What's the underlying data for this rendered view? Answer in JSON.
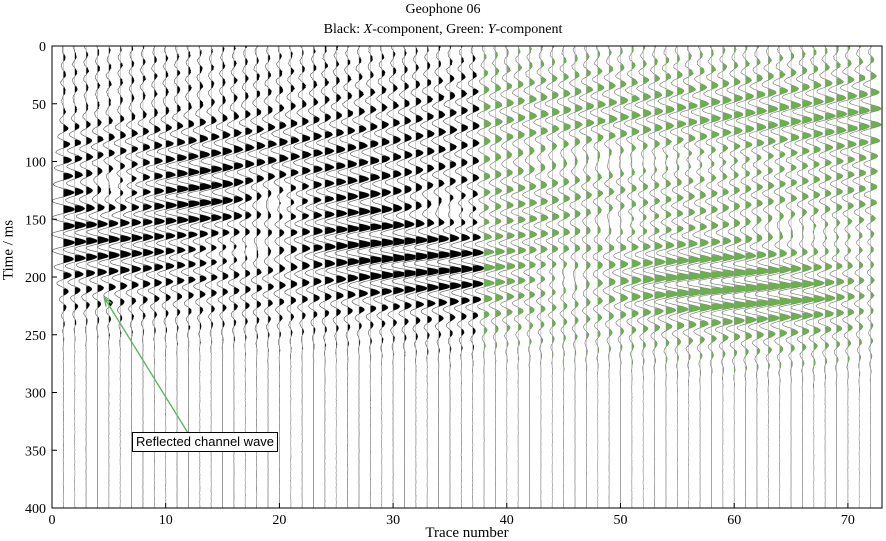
{
  "chart_data": {
    "type": "seismic-wiggle",
    "title": "Geophone 06",
    "subtitle": {
      "part1": "Black: ",
      "x_italic": "X",
      "part2": "-component, Green: ",
      "y_italic": "Y",
      "part3": "-component"
    },
    "xlabel": "Trace number",
    "ylabel": "Time / ms",
    "xlim": [
      0,
      73
    ],
    "ylim": [
      0,
      400
    ],
    "y_inverted": true,
    "x_ticks": [
      0,
      10,
      20,
      30,
      40,
      50,
      60,
      70
    ],
    "y_ticks": [
      0,
      50,
      100,
      150,
      200,
      250,
      300,
      350,
      400
    ],
    "trace_count": 72,
    "series": [
      {
        "name": "X-component",
        "color": "#000000",
        "traces": [
          1,
          37
        ]
      },
      {
        "name": "Y-component",
        "color": "#6ab04c",
        "traces": [
          38,
          72
        ]
      }
    ],
    "events": [
      {
        "time_at_trace1": 140,
        "time_at_trace72": 215,
        "strength": 1.0
      },
      {
        "time_at_trace1": 185,
        "time_at_trace72": 225,
        "strength": 0.9
      },
      {
        "time_at_trace1": 75,
        "time_at_trace72": 70,
        "strength": 0.8
      },
      {
        "time_at_trace1": 115,
        "time_at_trace72": 125,
        "strength": 0.7
      },
      {
        "time_at_trace1": 45,
        "time_at_trace72": 45,
        "strength": 0.55
      }
    ],
    "annotation": {
      "text": "Reflected channel wave",
      "arrow_to": {
        "trace": 4.6,
        "time": 218
      }
    },
    "colors": {
      "x_component": "#000000",
      "y_component": "#6ab04c",
      "arrow": "#5cb85c"
    }
  }
}
